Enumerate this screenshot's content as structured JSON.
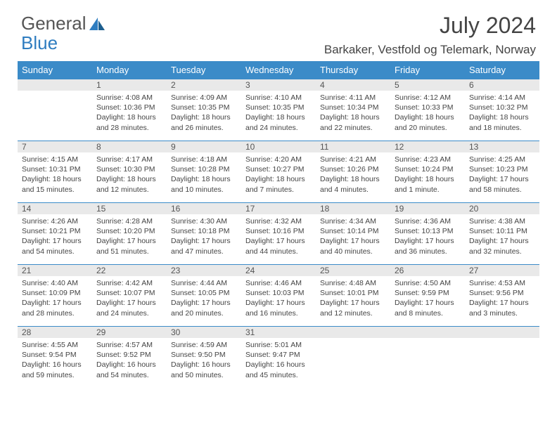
{
  "logo": {
    "text1": "General",
    "text2": "Blue"
  },
  "title": "July 2024",
  "location": "Barkaker, Vestfold og Telemark, Norway",
  "colors": {
    "header_bg": "#3b8bc8",
    "header_text": "#ffffff",
    "daynum_bg": "#e9e9e9",
    "body_text": "#444444",
    "logo_gray": "#555555",
    "logo_blue": "#2f7dc0",
    "row_border": "#3b8bc8"
  },
  "weekdays": [
    "Sunday",
    "Monday",
    "Tuesday",
    "Wednesday",
    "Thursday",
    "Friday",
    "Saturday"
  ],
  "weeks": [
    [
      null,
      {
        "n": "1",
        "sr": "Sunrise: 4:08 AM",
        "ss": "Sunset: 10:36 PM",
        "d1": "Daylight: 18 hours",
        "d2": "and 28 minutes."
      },
      {
        "n": "2",
        "sr": "Sunrise: 4:09 AM",
        "ss": "Sunset: 10:35 PM",
        "d1": "Daylight: 18 hours",
        "d2": "and 26 minutes."
      },
      {
        "n": "3",
        "sr": "Sunrise: 4:10 AM",
        "ss": "Sunset: 10:35 PM",
        "d1": "Daylight: 18 hours",
        "d2": "and 24 minutes."
      },
      {
        "n": "4",
        "sr": "Sunrise: 4:11 AM",
        "ss": "Sunset: 10:34 PM",
        "d1": "Daylight: 18 hours",
        "d2": "and 22 minutes."
      },
      {
        "n": "5",
        "sr": "Sunrise: 4:12 AM",
        "ss": "Sunset: 10:33 PM",
        "d1": "Daylight: 18 hours",
        "d2": "and 20 minutes."
      },
      {
        "n": "6",
        "sr": "Sunrise: 4:14 AM",
        "ss": "Sunset: 10:32 PM",
        "d1": "Daylight: 18 hours",
        "d2": "and 18 minutes."
      }
    ],
    [
      {
        "n": "7",
        "sr": "Sunrise: 4:15 AM",
        "ss": "Sunset: 10:31 PM",
        "d1": "Daylight: 18 hours",
        "d2": "and 15 minutes."
      },
      {
        "n": "8",
        "sr": "Sunrise: 4:17 AM",
        "ss": "Sunset: 10:30 PM",
        "d1": "Daylight: 18 hours",
        "d2": "and 12 minutes."
      },
      {
        "n": "9",
        "sr": "Sunrise: 4:18 AM",
        "ss": "Sunset: 10:28 PM",
        "d1": "Daylight: 18 hours",
        "d2": "and 10 minutes."
      },
      {
        "n": "10",
        "sr": "Sunrise: 4:20 AM",
        "ss": "Sunset: 10:27 PM",
        "d1": "Daylight: 18 hours",
        "d2": "and 7 minutes."
      },
      {
        "n": "11",
        "sr": "Sunrise: 4:21 AM",
        "ss": "Sunset: 10:26 PM",
        "d1": "Daylight: 18 hours",
        "d2": "and 4 minutes."
      },
      {
        "n": "12",
        "sr": "Sunrise: 4:23 AM",
        "ss": "Sunset: 10:24 PM",
        "d1": "Daylight: 18 hours",
        "d2": "and 1 minute."
      },
      {
        "n": "13",
        "sr": "Sunrise: 4:25 AM",
        "ss": "Sunset: 10:23 PM",
        "d1": "Daylight: 17 hours",
        "d2": "and 58 minutes."
      }
    ],
    [
      {
        "n": "14",
        "sr": "Sunrise: 4:26 AM",
        "ss": "Sunset: 10:21 PM",
        "d1": "Daylight: 17 hours",
        "d2": "and 54 minutes."
      },
      {
        "n": "15",
        "sr": "Sunrise: 4:28 AM",
        "ss": "Sunset: 10:20 PM",
        "d1": "Daylight: 17 hours",
        "d2": "and 51 minutes."
      },
      {
        "n": "16",
        "sr": "Sunrise: 4:30 AM",
        "ss": "Sunset: 10:18 PM",
        "d1": "Daylight: 17 hours",
        "d2": "and 47 minutes."
      },
      {
        "n": "17",
        "sr": "Sunrise: 4:32 AM",
        "ss": "Sunset: 10:16 PM",
        "d1": "Daylight: 17 hours",
        "d2": "and 44 minutes."
      },
      {
        "n": "18",
        "sr": "Sunrise: 4:34 AM",
        "ss": "Sunset: 10:14 PM",
        "d1": "Daylight: 17 hours",
        "d2": "and 40 minutes."
      },
      {
        "n": "19",
        "sr": "Sunrise: 4:36 AM",
        "ss": "Sunset: 10:13 PM",
        "d1": "Daylight: 17 hours",
        "d2": "and 36 minutes."
      },
      {
        "n": "20",
        "sr": "Sunrise: 4:38 AM",
        "ss": "Sunset: 10:11 PM",
        "d1": "Daylight: 17 hours",
        "d2": "and 32 minutes."
      }
    ],
    [
      {
        "n": "21",
        "sr": "Sunrise: 4:40 AM",
        "ss": "Sunset: 10:09 PM",
        "d1": "Daylight: 17 hours",
        "d2": "and 28 minutes."
      },
      {
        "n": "22",
        "sr": "Sunrise: 4:42 AM",
        "ss": "Sunset: 10:07 PM",
        "d1": "Daylight: 17 hours",
        "d2": "and 24 minutes."
      },
      {
        "n": "23",
        "sr": "Sunrise: 4:44 AM",
        "ss": "Sunset: 10:05 PM",
        "d1": "Daylight: 17 hours",
        "d2": "and 20 minutes."
      },
      {
        "n": "24",
        "sr": "Sunrise: 4:46 AM",
        "ss": "Sunset: 10:03 PM",
        "d1": "Daylight: 17 hours",
        "d2": "and 16 minutes."
      },
      {
        "n": "25",
        "sr": "Sunrise: 4:48 AM",
        "ss": "Sunset: 10:01 PM",
        "d1": "Daylight: 17 hours",
        "d2": "and 12 minutes."
      },
      {
        "n": "26",
        "sr": "Sunrise: 4:50 AM",
        "ss": "Sunset: 9:59 PM",
        "d1": "Daylight: 17 hours",
        "d2": "and 8 minutes."
      },
      {
        "n": "27",
        "sr": "Sunrise: 4:53 AM",
        "ss": "Sunset: 9:56 PM",
        "d1": "Daylight: 17 hours",
        "d2": "and 3 minutes."
      }
    ],
    [
      {
        "n": "28",
        "sr": "Sunrise: 4:55 AM",
        "ss": "Sunset: 9:54 PM",
        "d1": "Daylight: 16 hours",
        "d2": "and 59 minutes."
      },
      {
        "n": "29",
        "sr": "Sunrise: 4:57 AM",
        "ss": "Sunset: 9:52 PM",
        "d1": "Daylight: 16 hours",
        "d2": "and 54 minutes."
      },
      {
        "n": "30",
        "sr": "Sunrise: 4:59 AM",
        "ss": "Sunset: 9:50 PM",
        "d1": "Daylight: 16 hours",
        "d2": "and 50 minutes."
      },
      {
        "n": "31",
        "sr": "Sunrise: 5:01 AM",
        "ss": "Sunset: 9:47 PM",
        "d1": "Daylight: 16 hours",
        "d2": "and 45 minutes."
      },
      null,
      null,
      null
    ]
  ]
}
